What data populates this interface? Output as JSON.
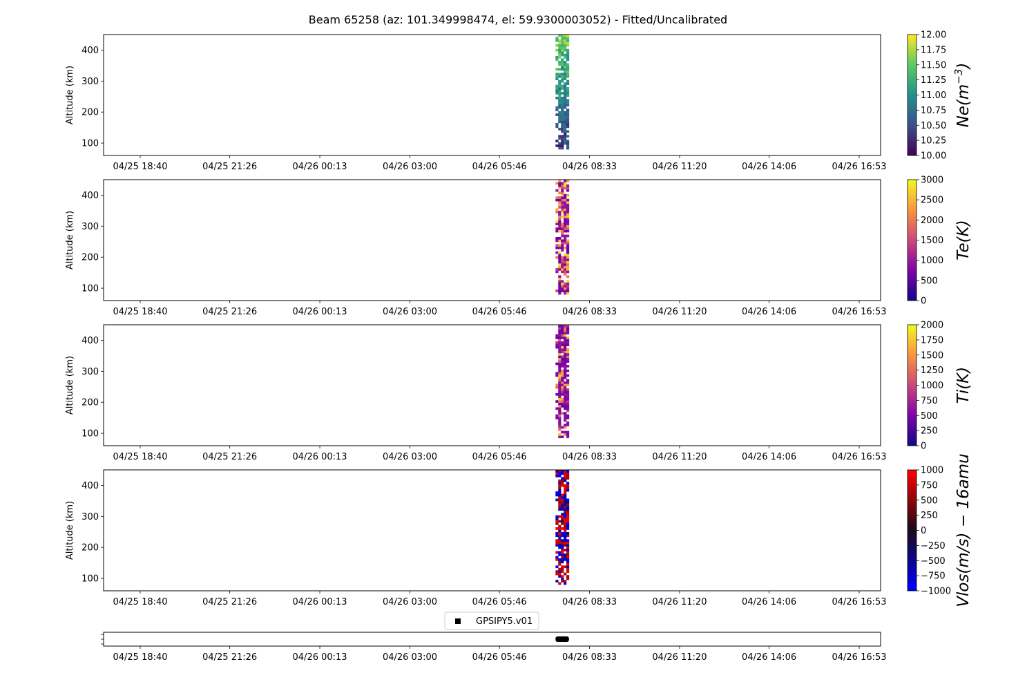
{
  "figure": {
    "title": "Beam 65258 (az: 101.349998474, el: 59.9300003052) - Fitted/Uncalibrated"
  },
  "chart_data": [
    {
      "type": "heatmap",
      "parameter": "Ne",
      "ylabel": "Altitude (km)",
      "yticks": [
        100,
        200,
        300,
        400
      ],
      "ylim": [
        60,
        450
      ],
      "xticks": [
        "04/25 18:40",
        "04/25 21:26",
        "04/26 00:13",
        "04/26 03:00",
        "04/26 05:46",
        "04/26 08:33",
        "04/26 11:20",
        "04/26 14:06",
        "04/26 16:53"
      ],
      "data_time_range": [
        "04/26 07:30",
        "04/26 07:55"
      ],
      "data_altitude_range": [
        80,
        450
      ],
      "colormap": "viridis",
      "colorbar": {
        "label": "Ne(m^-3)",
        "label_base": "Ne(m",
        "label_exp": "−3",
        "label_end": ")",
        "range": [
          10,
          12
        ],
        "ticks": [
          "10.00",
          "10.25",
          "10.50",
          "10.75",
          "11.00",
          "11.25",
          "11.50",
          "11.75",
          "12.00"
        ]
      }
    },
    {
      "type": "heatmap",
      "parameter": "Te",
      "ylabel": "Altitude (km)",
      "yticks": [
        100,
        200,
        300,
        400
      ],
      "ylim": [
        60,
        450
      ],
      "xticks": [
        "04/25 18:40",
        "04/25 21:26",
        "04/26 00:13",
        "04/26 03:00",
        "04/26 05:46",
        "04/26 08:33",
        "04/26 11:20",
        "04/26 14:06",
        "04/26 16:53"
      ],
      "data_time_range": [
        "04/26 07:30",
        "04/26 07:55"
      ],
      "data_altitude_range": [
        80,
        450
      ],
      "colormap": "plasma",
      "colorbar": {
        "label": "Te(K)",
        "range": [
          0,
          3000
        ],
        "ticks": [
          "0",
          "500",
          "1000",
          "1500",
          "2000",
          "2500",
          "3000"
        ]
      }
    },
    {
      "type": "heatmap",
      "parameter": "Ti",
      "ylabel": "Altitude (km)",
      "yticks": [
        100,
        200,
        300,
        400
      ],
      "ylim": [
        60,
        450
      ],
      "xticks": [
        "04/25 18:40",
        "04/25 21:26",
        "04/26 00:13",
        "04/26 03:00",
        "04/26 05:46",
        "04/26 08:33",
        "04/26 11:20",
        "04/26 14:06",
        "04/26 16:53"
      ],
      "data_time_range": [
        "04/26 07:30",
        "04/26 07:55"
      ],
      "data_altitude_range": [
        85,
        450
      ],
      "colormap": "plasma",
      "colorbar": {
        "label": "Ti(K)",
        "range": [
          0,
          2000
        ],
        "ticks": [
          "0",
          "250",
          "500",
          "750",
          "1000",
          "1250",
          "1500",
          "1750",
          "2000"
        ]
      }
    },
    {
      "type": "heatmap",
      "parameter": "Vlos",
      "ylabel": "Altitude (km)",
      "yticks": [
        100,
        200,
        300,
        400
      ],
      "ylim": [
        60,
        450
      ],
      "xticks": [
        "04/25 18:40",
        "04/25 21:26",
        "04/26 00:13",
        "04/26 03:00",
        "04/26 05:46",
        "04/26 08:33",
        "04/26 11:20",
        "04/26 14:06",
        "04/26 16:53"
      ],
      "data_time_range": [
        "04/26 07:30",
        "04/26 07:55"
      ],
      "data_altitude_range": [
        80,
        450
      ],
      "colormap": "blue-black-red",
      "colorbar": {
        "label": "Vlos(m/s) − 16amu",
        "range": [
          -1000,
          1000
        ],
        "ticks": [
          "−1000",
          "−750",
          "−500",
          "−250",
          "0",
          "250",
          "500",
          "750",
          "1000"
        ]
      }
    },
    {
      "type": "scatter",
      "parameter": "mode",
      "xticks": [
        "04/25 18:40",
        "04/25 21:26",
        "04/26 00:13",
        "04/26 03:00",
        "04/26 05:46",
        "04/26 08:33",
        "04/26 11:20",
        "04/26 14:06",
        "04/26 16:53"
      ],
      "series": [
        {
          "name": "GPSIPY5.v01",
          "x_range": [
            "04/26 07:30",
            "04/26 07:55"
          ],
          "color": "#000000"
        }
      ],
      "legend": {
        "placement": "top-center"
      }
    }
  ]
}
